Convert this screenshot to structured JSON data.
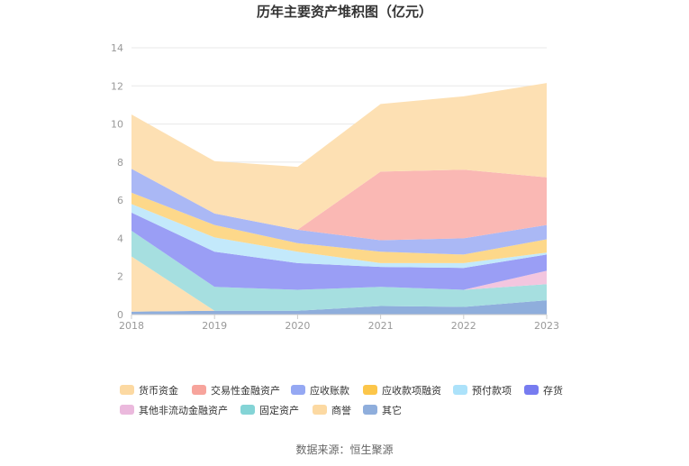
{
  "chart_data": {
    "type": "area",
    "stacked": true,
    "title": "历年主要资产堆积图（亿元）",
    "x": [
      "2018",
      "2019",
      "2020",
      "2021",
      "2022",
      "2023"
    ],
    "y_ticks": [
      "0",
      "2",
      "4",
      "6",
      "8",
      "10",
      "12",
      "14"
    ],
    "ylim": [
      0,
      14
    ],
    "grid": true,
    "legend_position": "bottom",
    "series": [
      {
        "name": "其它",
        "color": "#8faedc",
        "values": [
          0.15,
          0.2,
          0.2,
          0.45,
          0.4,
          0.75
        ]
      },
      {
        "name": "商誉",
        "color": "#fde0b3",
        "values": [
          2.9,
          0.0,
          0.0,
          0.0,
          0.0,
          0.0
        ]
      },
      {
        "name": "固定资产",
        "color": "#a6dfe0",
        "values": [
          1.35,
          1.25,
          1.1,
          1.0,
          0.9,
          0.85
        ]
      },
      {
        "name": "其他非流动金融资产",
        "color": "#f3c6df",
        "values": [
          0.0,
          0.0,
          0.0,
          0.0,
          0.0,
          0.7
        ]
      },
      {
        "name": "存货",
        "color": "#9a9ef5",
        "values": [
          0.95,
          1.85,
          1.4,
          1.05,
          1.15,
          0.85
        ]
      },
      {
        "name": "预付款项",
        "color": "#c3e9fb",
        "values": [
          0.45,
          0.75,
          0.6,
          0.2,
          0.25,
          0.1
        ]
      },
      {
        "name": "应收款项融资",
        "color": "#fdd88a",
        "values": [
          0.6,
          0.65,
          0.45,
          0.6,
          0.45,
          0.7
        ]
      },
      {
        "name": "应收账款",
        "color": "#aab8f5",
        "values": [
          1.25,
          0.6,
          0.7,
          0.6,
          0.85,
          0.75
        ]
      },
      {
        "name": "交易性金融资产",
        "color": "#fab8b4",
        "values": [
          0.0,
          0.0,
          0.0,
          3.6,
          3.6,
          2.5
        ]
      },
      {
        "name": "货币资金",
        "color": "#fde0b3",
        "values": [
          2.85,
          2.75,
          3.3,
          3.55,
          3.85,
          4.95
        ]
      }
    ]
  },
  "legend": [
    {
      "name": "货币资金",
      "color": "#fcd9a2"
    },
    {
      "name": "交易性金融资产",
      "color": "#f7a49c"
    },
    {
      "name": "应收账款",
      "color": "#95a8f3"
    },
    {
      "name": "应收款项融资",
      "color": "#fcc64a"
    },
    {
      "name": "预付款项",
      "color": "#ace2fa"
    },
    {
      "name": "存货",
      "color": "#777cf0"
    },
    {
      "name": "其他非流动金融资产",
      "color": "#ebb9dd"
    },
    {
      "name": "固定资产",
      "color": "#84d4d6"
    },
    {
      "name": "商誉",
      "color": "#fcd9a2"
    },
    {
      "name": "其它",
      "color": "#8faedc"
    }
  ],
  "source": "数据来源：恒生聚源"
}
